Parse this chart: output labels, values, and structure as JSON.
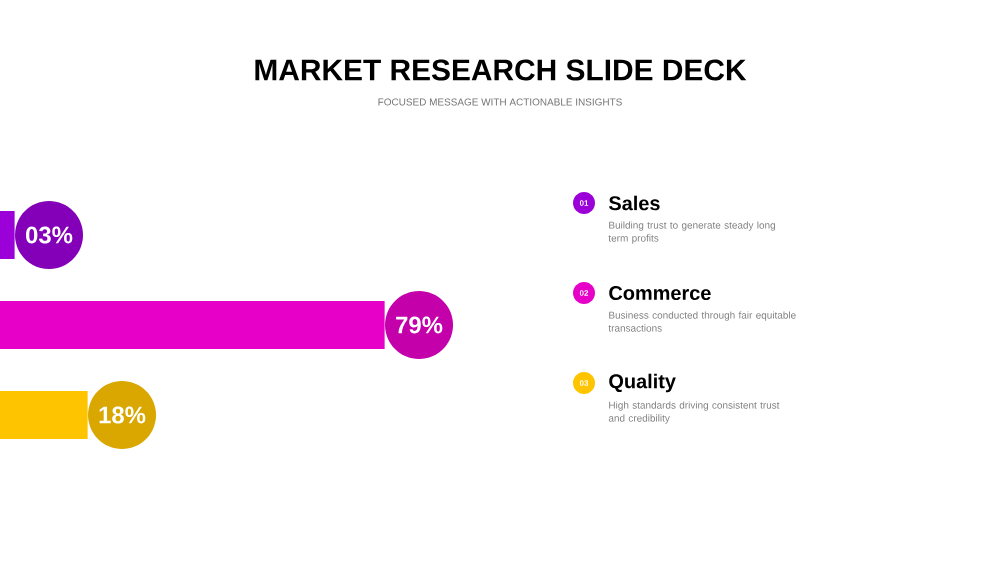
{
  "chart_data": {
    "type": "bar",
    "orientation": "horizontal",
    "title": "MARKET RESEARCH SLIDE DECK",
    "subtitle": "FOCUSED MESSAGE WITH ACTIONABLE INSIGHTS",
    "categories": [
      "Sales",
      "Commerce",
      "Quality"
    ],
    "values": [
      3,
      79,
      18
    ],
    "value_labels": [
      "03%",
      "79%",
      "18%"
    ],
    "colors": [
      "#9b00d9",
      "#e600c8",
      "#ffc400"
    ],
    "annotations": [
      "01",
      "Building trust to generate steady long term profits",
      "02",
      "Business conducted through fair equitable transactions",
      "03",
      "High standards driving consistent trust and credibility"
    ]
  }
}
